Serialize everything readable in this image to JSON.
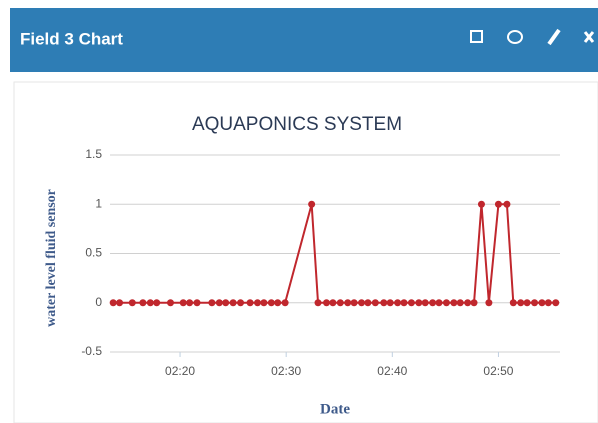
{
  "header": {
    "title": "Field 3 Chart"
  },
  "chart_data": {
    "type": "line",
    "title": "AQUAPONICS SYSTEM",
    "x_label": "Date",
    "y_label": "water level fluid sensor",
    "x": [
      133.7,
      134.3,
      135.5,
      136.5,
      137.2,
      137.8,
      139.1,
      140.3,
      140.9,
      141.6,
      143.0,
      143.7,
      144.3,
      145.0,
      145.7,
      146.6,
      147.3,
      147.9,
      148.6,
      149.2,
      149.9,
      152.4,
      153.0,
      153.8,
      154.4,
      155.1,
      155.8,
      156.4,
      157.1,
      157.7,
      158.4,
      159.2,
      159.8,
      160.5,
      161.1,
      161.8,
      162.5,
      163.1,
      163.8,
      164.4,
      165.1,
      165.8,
      166.4,
      167.1,
      167.7,
      168.4,
      169.1,
      170.0,
      170.8,
      171.4,
      172.1,
      172.7,
      173.4,
      174.1,
      174.7,
      175.4
    ],
    "series": [
      {
        "name": "Field 3",
        "color": "#c0272d",
        "values": [
          0,
          0,
          0,
          0,
          0,
          0,
          0,
          0,
          0,
          0,
          0,
          0,
          0,
          0,
          0,
          0,
          0,
          0,
          0,
          0,
          0,
          1,
          0,
          0,
          0,
          0,
          0,
          0,
          0,
          0,
          0,
          0,
          0,
          0,
          0,
          0,
          0,
          0,
          0,
          0,
          0,
          0,
          0,
          0,
          0,
          1,
          0,
          1,
          1,
          0,
          0,
          0,
          0,
          0,
          0,
          0
        ]
      }
    ],
    "xlim": [
      133.4,
      175.8
    ],
    "xticks": [
      {
        "value": 140,
        "label": "02:20"
      },
      {
        "value": 150,
        "label": "02:30"
      },
      {
        "value": 160,
        "label": "02:40"
      },
      {
        "value": 170,
        "label": "02:50"
      }
    ],
    "ylim": [
      -0.5,
      1.5
    ],
    "yticks": [
      -0.5,
      0,
      0.5,
      1,
      1.5
    ],
    "grid": true
  }
}
